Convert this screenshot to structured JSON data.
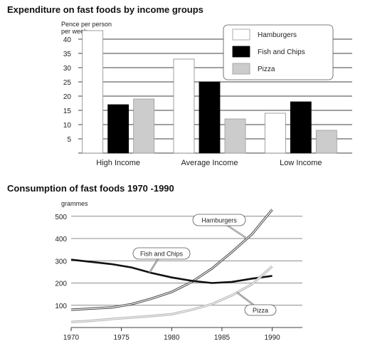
{
  "chart_data": [
    {
      "type": "bar",
      "title": "Expenditure on fast foods by income groups",
      "ylabel": "Pence per person per week",
      "ylabel_lines": [
        "Pence per person",
        "per week"
      ],
      "categories": [
        "High Income",
        "Average Income",
        "Low Income"
      ],
      "ylim": [
        0,
        45
      ],
      "yticks": [
        5,
        10,
        15,
        20,
        25,
        30,
        35,
        40
      ],
      "grid": true,
      "legend_position": "top-right",
      "series": [
        {
          "name": "Hamburgers",
          "color": "#ffffff",
          "values": [
            43,
            33,
            14
          ]
        },
        {
          "name": "Fish and Chips",
          "color": "#000000",
          "values": [
            17,
            25,
            18
          ]
        },
        {
          "name": "Pizza",
          "color": "#cccccc",
          "values": [
            19,
            12,
            8
          ]
        }
      ]
    },
    {
      "type": "line",
      "title": "Consumption of fast foods 1970 -1990",
      "ylabel": "grammes",
      "xlim": [
        1970,
        1993
      ],
      "ylim": [
        0,
        560
      ],
      "xticks": [
        1970,
        1975,
        1980,
        1985,
        1990
      ],
      "yticks": [
        100,
        200,
        300,
        400,
        500
      ],
      "grid": true,
      "series": [
        {
          "name": "Hamburgers",
          "style": "double",
          "x": [
            1970,
            1972,
            1974,
            1976,
            1978,
            1980,
            1982,
            1984,
            1986,
            1988,
            1990
          ],
          "y": [
            80,
            85,
            90,
            105,
            130,
            160,
            205,
            265,
            340,
            420,
            530
          ]
        },
        {
          "name": "Fish and Chips",
          "style": "thick",
          "x": [
            1970,
            1972,
            1974,
            1976,
            1978,
            1980,
            1982,
            1984,
            1986,
            1988,
            1990
          ],
          "y": [
            305,
            295,
            285,
            270,
            245,
            225,
            210,
            200,
            205,
            220,
            232
          ]
        },
        {
          "name": "Pizza",
          "style": "light",
          "x": [
            1970,
            1972,
            1974,
            1976,
            1978,
            1980,
            1982,
            1984,
            1986,
            1988,
            1990
          ],
          "y": [
            25,
            30,
            38,
            45,
            52,
            60,
            80,
            105,
            145,
            195,
            275
          ]
        }
      ]
    }
  ]
}
